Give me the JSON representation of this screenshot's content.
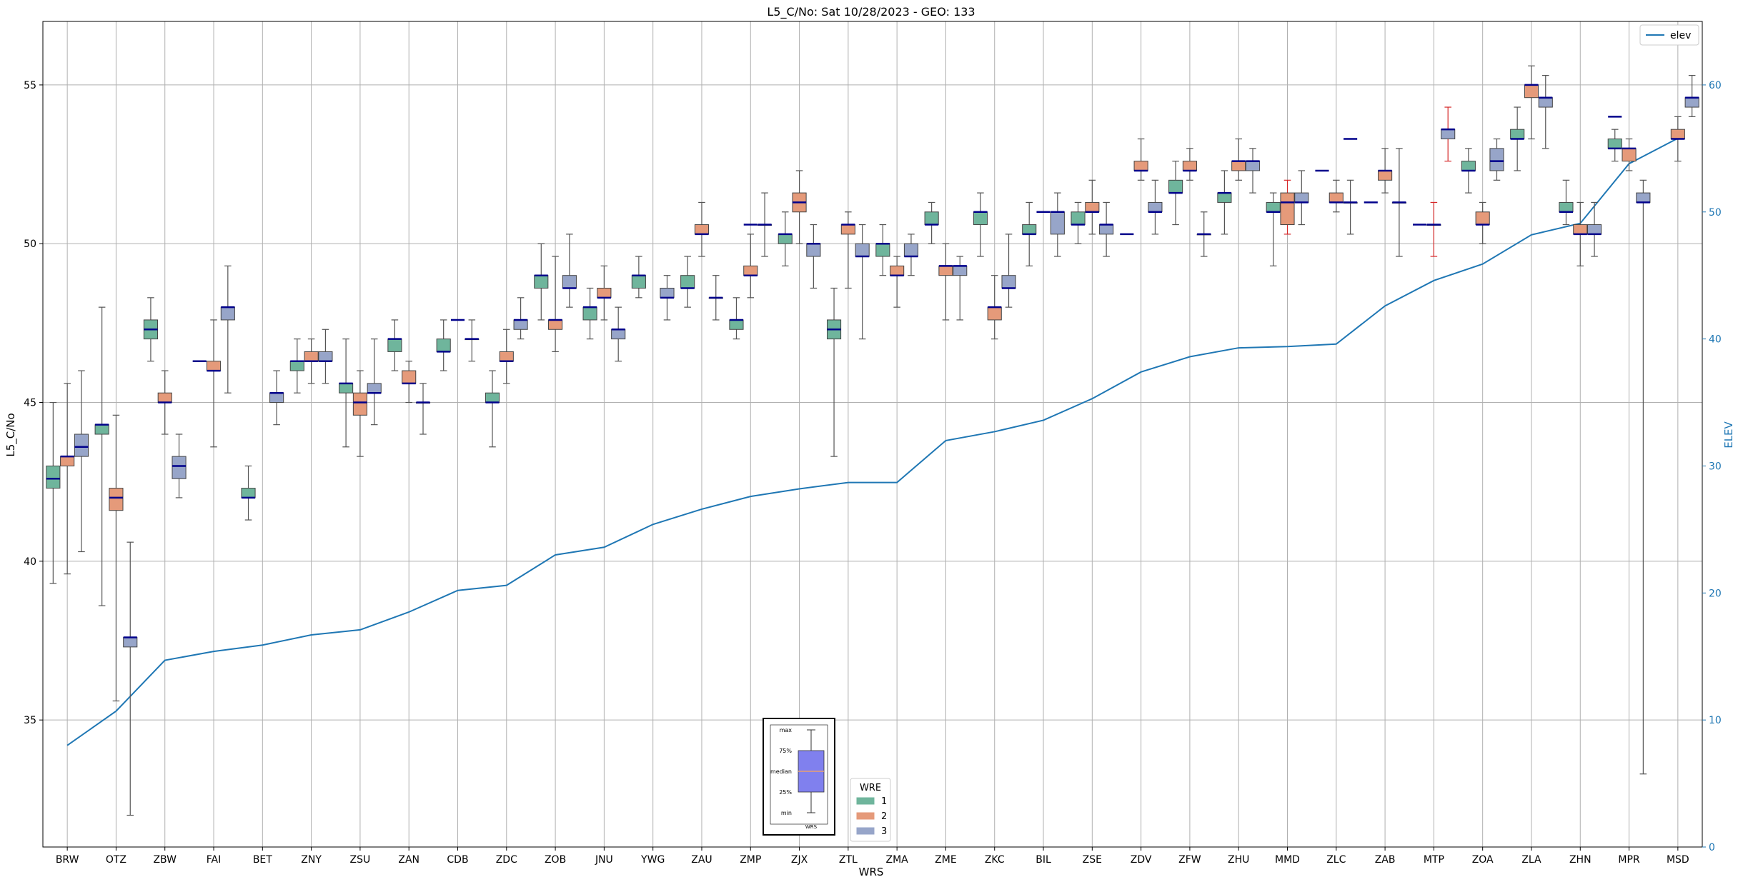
{
  "chart_data": {
    "type": "box",
    "title": "L5_C/No: Sat 10/28/2023 - GEO: 133",
    "xlabel": "WRS",
    "ylabel": "L5_C/No",
    "y2label": "ELEV",
    "ylim": [
      31,
      57
    ],
    "y2lim": [
      0,
      65
    ],
    "yticks": [
      35,
      40,
      45,
      50,
      55
    ],
    "y2ticks": [
      0,
      10,
      20,
      30,
      40,
      50,
      60
    ],
    "grid": true,
    "categories": [
      "BRW",
      "OTZ",
      "ZBW",
      "FAI",
      "BET",
      "ZNY",
      "ZSU",
      "ZAN",
      "CDB",
      "ZDC",
      "ZOB",
      "JNU",
      "YWG",
      "ZAU",
      "ZMP",
      "ZJX",
      "ZTL",
      "ZMA",
      "ZME",
      "ZKC",
      "BIL",
      "ZSE",
      "ZDV",
      "ZFW",
      "ZHU",
      "MMD",
      "ZLC",
      "ZAB",
      "MTP",
      "ZOA",
      "ZLA",
      "ZHN",
      "MPR",
      "MSD"
    ],
    "box_legend": {
      "title": "WRE",
      "entries": [
        "1",
        "2",
        "3"
      ]
    },
    "line_legend": "elev",
    "wre_colors": {
      "1": "#6fb59c",
      "2": "#e59a7a",
      "3": "#97a5c9"
    },
    "elev_color": "#1f77b4",
    "median_color": "#00008b",
    "inset_legend": {
      "labels": [
        "max",
        "75%",
        "median",
        "25%",
        "min"
      ],
      "xlabel": "WRS"
    },
    "series": [
      {
        "name": "1",
        "boxes": [
          {
            "cat": "BRW",
            "min": 39.3,
            "q1": 42.3,
            "med": 42.6,
            "q3": 43.0,
            "max": 45.0
          },
          {
            "cat": "OTZ",
            "min": 38.6,
            "q1": 44.0,
            "med": 44.3,
            "q3": 44.3,
            "max": 48.0
          },
          {
            "cat": "ZBW",
            "min": 46.3,
            "q1": 47.0,
            "med": 47.3,
            "q3": 47.6,
            "max": 48.3
          },
          {
            "cat": "BET",
            "min": 41.3,
            "q1": 42.0,
            "med": 42.0,
            "q3": 42.3,
            "max": 43.0
          },
          {
            "cat": "ZNY",
            "min": 45.3,
            "q1": 46.0,
            "med": 46.3,
            "q3": 46.3,
            "max": 47.0
          },
          {
            "cat": "ZSU",
            "min": 43.6,
            "q1": 45.3,
            "med": 45.6,
            "q3": 45.6,
            "max": 47.0
          },
          {
            "cat": "ZAN",
            "min": 46.0,
            "q1": 46.6,
            "med": 47.0,
            "q3": 47.0,
            "max": 47.6
          },
          {
            "cat": "CDB",
            "min": 46.0,
            "q1": 46.6,
            "med": 46.6,
            "q3": 47.0,
            "max": 47.6
          },
          {
            "cat": "ZDC",
            "min": 43.6,
            "q1": 45.0,
            "med": 45.0,
            "q3": 45.3,
            "max": 46.0
          },
          {
            "cat": "ZOB",
            "min": 47.6,
            "q1": 48.6,
            "med": 49.0,
            "q3": 49.0,
            "max": 50.0
          },
          {
            "cat": "JNU",
            "min": 47.0,
            "q1": 47.6,
            "med": 48.0,
            "q3": 48.0,
            "max": 48.6
          },
          {
            "cat": "YWG",
            "min": 48.3,
            "q1": 48.6,
            "med": 49.0,
            "q3": 49.0,
            "max": 49.6
          },
          {
            "cat": "ZAU",
            "min": 48.0,
            "q1": 48.6,
            "med": 48.6,
            "q3": 49.0,
            "max": 49.6
          },
          {
            "cat": "ZMP",
            "min": 47.0,
            "q1": 47.3,
            "med": 47.6,
            "q3": 47.6,
            "max": 48.3
          },
          {
            "cat": "ZJX",
            "min": 49.3,
            "q1": 50.0,
            "med": 50.3,
            "q3": 50.3,
            "max": 51.0
          },
          {
            "cat": "ZTL",
            "min": 43.3,
            "q1": 47.0,
            "med": 47.3,
            "q3": 47.6,
            "max": 48.6
          },
          {
            "cat": "ZMA",
            "min": 49.0,
            "q1": 49.6,
            "med": 50.0,
            "q3": 50.0,
            "max": 50.6
          },
          {
            "cat": "ZME",
            "min": 50.0,
            "q1": 50.6,
            "med": 50.6,
            "q3": 51.0,
            "max": 51.3
          },
          {
            "cat": "ZKC",
            "min": 49.6,
            "q1": 50.6,
            "med": 51.0,
            "q3": 51.0,
            "max": 51.6
          },
          {
            "cat": "BIL",
            "min": 49.3,
            "q1": 50.3,
            "med": 50.3,
            "q3": 50.6,
            "max": 51.3
          },
          {
            "cat": "ZSE",
            "min": 50.0,
            "q1": 50.6,
            "med": 50.6,
            "q3": 51.0,
            "max": 51.3
          },
          {
            "cat": "ZFW",
            "min": 50.6,
            "q1": 51.6,
            "med": 51.6,
            "q3": 52.0,
            "max": 52.6
          },
          {
            "cat": "ZHU",
            "min": 50.3,
            "q1": 51.3,
            "med": 51.6,
            "q3": 51.6,
            "max": 52.3
          },
          {
            "cat": "MMD",
            "min": 49.3,
            "q1": 51.0,
            "med": 51.0,
            "q3": 51.3,
            "max": 51.6
          },
          {
            "cat": "ZOA",
            "min": 51.6,
            "q1": 52.3,
            "med": 52.3,
            "q3": 52.6,
            "max": 53.0
          },
          {
            "cat": "ZLA",
            "min": 52.3,
            "q1": 53.3,
            "med": 53.3,
            "q3": 53.6,
            "max": 54.3
          },
          {
            "cat": "ZHN",
            "min": 50.6,
            "q1": 51.0,
            "med": 51.0,
            "q3": 51.3,
            "max": 52.0
          },
          {
            "cat": "MPR",
            "min": 52.6,
            "q1": 53.0,
            "med": 53.0,
            "q3": 53.3,
            "max": 53.6
          }
        ]
      },
      {
        "name": "2",
        "boxes": [
          {
            "cat": "BRW",
            "min": 39.6,
            "q1": 43.0,
            "med": 43.3,
            "q3": 43.3,
            "max": 45.6
          },
          {
            "cat": "OTZ",
            "min": 35.6,
            "q1": 41.6,
            "med": 42.0,
            "q3": 42.3,
            "max": 44.6
          },
          {
            "cat": "ZBW",
            "min": 44.0,
            "q1": 45.0,
            "med": 45.0,
            "q3": 45.3,
            "max": 46.0
          },
          {
            "cat": "FAI",
            "min": 43.6,
            "q1": 46.0,
            "med": 46.0,
            "q3": 46.3,
            "max": 47.6
          },
          {
            "cat": "ZNY",
            "min": 45.6,
            "q1": 46.3,
            "med": 46.3,
            "q3": 46.6,
            "max": 47.0
          },
          {
            "cat": "ZSU",
            "min": 43.3,
            "q1": 44.6,
            "med": 45.0,
            "q3": 45.3,
            "max": 46.0
          },
          {
            "cat": "ZAN",
            "min": 45.0,
            "q1": 45.6,
            "med": 45.6,
            "q3": 46.0,
            "max": 46.3
          },
          {
            "cat": "ZDC",
            "min": 45.6,
            "q1": 46.3,
            "med": 46.3,
            "q3": 46.6,
            "max": 47.3
          },
          {
            "cat": "ZOB",
            "min": 46.6,
            "q1": 47.3,
            "med": 47.6,
            "q3": 47.6,
            "max": 49.6
          },
          {
            "cat": "JNU",
            "min": 47.6,
            "q1": 48.3,
            "med": 48.3,
            "q3": 48.6,
            "max": 49.3
          },
          {
            "cat": "ZAU",
            "min": 49.6,
            "q1": 50.3,
            "med": 50.3,
            "q3": 50.6,
            "max": 51.3
          },
          {
            "cat": "ZMP",
            "min": 48.3,
            "q1": 49.0,
            "med": 49.0,
            "q3": 49.3,
            "max": 50.3
          },
          {
            "cat": "ZJX",
            "min": 50.0,
            "q1": 51.0,
            "med": 51.3,
            "q3": 51.6,
            "max": 52.3
          },
          {
            "cat": "ZTL",
            "min": 48.6,
            "q1": 50.3,
            "med": 50.6,
            "q3": 50.6,
            "max": 51.0
          },
          {
            "cat": "ZMA",
            "min": 48.0,
            "q1": 49.0,
            "med": 49.0,
            "q3": 49.3,
            "max": 49.6
          },
          {
            "cat": "ZME",
            "min": 47.6,
            "q1": 49.0,
            "med": 49.3,
            "q3": 49.3,
            "max": 50.0
          },
          {
            "cat": "ZKC",
            "min": 47.0,
            "q1": 47.6,
            "med": 48.0,
            "q3": 48.0,
            "max": 49.0
          },
          {
            "cat": "ZSE",
            "min": 50.3,
            "q1": 51.0,
            "med": 51.0,
            "q3": 51.3,
            "max": 52.0
          },
          {
            "cat": "ZDV",
            "min": 52.0,
            "q1": 52.3,
            "med": 52.3,
            "q3": 52.6,
            "max": 53.3
          },
          {
            "cat": "ZFW",
            "min": 52.0,
            "q1": 52.3,
            "med": 52.3,
            "q3": 52.6,
            "max": 53.0
          },
          {
            "cat": "ZHU",
            "min": 52.0,
            "q1": 52.3,
            "med": 52.6,
            "q3": 52.6,
            "max": 53.3
          },
          {
            "cat": "MMD",
            "min": 50.3,
            "q1": 50.6,
            "med": 51.3,
            "q3": 51.6,
            "max": 52.0,
            "whisker_color": "#d62728"
          },
          {
            "cat": "ZLC",
            "min": 51.0,
            "q1": 51.3,
            "med": 51.3,
            "q3": 51.6,
            "max": 52.0
          },
          {
            "cat": "ZAB",
            "min": 51.6,
            "q1": 52.0,
            "med": 52.3,
            "q3": 52.3,
            "max": 53.0
          },
          {
            "cat": "MTP",
            "min": 49.6,
            "q1": 50.6,
            "med": 50.6,
            "q3": 50.6,
            "max": 51.3,
            "whisker_color": "#d62728"
          },
          {
            "cat": "ZOA",
            "min": 50.0,
            "q1": 50.6,
            "med": 50.6,
            "q3": 51.0,
            "max": 51.3
          },
          {
            "cat": "ZLA",
            "min": 53.3,
            "q1": 54.6,
            "med": 55.0,
            "q3": 55.0,
            "max": 55.6
          },
          {
            "cat": "ZHN",
            "min": 49.3,
            "q1": 50.3,
            "med": 50.3,
            "q3": 50.6,
            "max": 51.3
          },
          {
            "cat": "MPR",
            "min": 52.3,
            "q1": 52.6,
            "med": 53.0,
            "q3": 53.0,
            "max": 53.3
          },
          {
            "cat": "MSD",
            "min": 52.6,
            "q1": 53.3,
            "med": 53.3,
            "q3": 53.6,
            "max": 54.0
          }
        ]
      },
      {
        "name": "3",
        "boxes": [
          {
            "cat": "BRW",
            "min": 40.3,
            "q1": 43.3,
            "med": 43.6,
            "q3": 44.0,
            "max": 46.0
          },
          {
            "cat": "OTZ",
            "min": 32.0,
            "q1": 37.3,
            "med": 37.6,
            "q3": 37.6,
            "max": 40.6
          },
          {
            "cat": "ZBW",
            "min": 42.0,
            "q1": 42.6,
            "med": 43.0,
            "q3": 43.3,
            "max": 44.0
          },
          {
            "cat": "FAI",
            "min": 45.3,
            "q1": 47.6,
            "med": 48.0,
            "q3": 48.0,
            "max": 49.3
          },
          {
            "cat": "BET",
            "min": 44.3,
            "q1": 45.0,
            "med": 45.3,
            "q3": 45.3,
            "max": 46.0
          },
          {
            "cat": "ZNY",
            "min": 45.6,
            "q1": 46.3,
            "med": 46.3,
            "q3": 46.6,
            "max": 47.3
          },
          {
            "cat": "ZSU",
            "min": 44.3,
            "q1": 45.3,
            "med": 45.3,
            "q3": 45.6,
            "max": 47.0
          },
          {
            "cat": "ZAN",
            "min": 44.0,
            "q1": 45.0,
            "med": 45.0,
            "q3": 45.0,
            "max": 45.6
          },
          {
            "cat": "CDB",
            "min": 46.3,
            "q1": 47.0,
            "med": 47.0,
            "q3": 47.0,
            "max": 47.6
          },
          {
            "cat": "ZDC",
            "min": 47.0,
            "q1": 47.3,
            "med": 47.6,
            "q3": 47.6,
            "max": 48.3
          },
          {
            "cat": "ZOB",
            "min": 48.0,
            "q1": 48.6,
            "med": 48.6,
            "q3": 49.0,
            "max": 50.3
          },
          {
            "cat": "JNU",
            "min": 46.3,
            "q1": 47.0,
            "med": 47.3,
            "q3": 47.3,
            "max": 48.0
          },
          {
            "cat": "YWG",
            "min": 47.6,
            "q1": 48.3,
            "med": 48.3,
            "q3": 48.6,
            "max": 49.0
          },
          {
            "cat": "ZAU",
            "min": 47.6,
            "q1": 48.3,
            "med": 48.3,
            "q3": 48.3,
            "max": 49.0
          },
          {
            "cat": "ZMP",
            "min": 49.6,
            "q1": 50.6,
            "med": 50.6,
            "q3": 50.6,
            "max": 51.6
          },
          {
            "cat": "ZJX",
            "min": 48.6,
            "q1": 49.6,
            "med": 50.0,
            "q3": 50.0,
            "max": 50.6
          },
          {
            "cat": "ZTL",
            "min": 47.0,
            "q1": 49.6,
            "med": 49.6,
            "q3": 50.0,
            "max": 50.6
          },
          {
            "cat": "ZMA",
            "min": 49.0,
            "q1": 49.6,
            "med": 49.6,
            "q3": 50.0,
            "max": 50.3
          },
          {
            "cat": "ZME",
            "min": 47.6,
            "q1": 49.0,
            "med": 49.3,
            "q3": 49.3,
            "max": 49.6
          },
          {
            "cat": "ZKC",
            "min": 48.0,
            "q1": 48.6,
            "med": 48.6,
            "q3": 49.0,
            "max": 50.3
          },
          {
            "cat": "BIL",
            "min": 49.6,
            "q1": 50.3,
            "med": 51.0,
            "q3": 51.0,
            "max": 51.6
          },
          {
            "cat": "ZSE",
            "min": 49.6,
            "q1": 50.3,
            "med": 50.6,
            "q3": 50.6,
            "max": 51.3
          },
          {
            "cat": "ZDV",
            "min": 50.3,
            "q1": 51.0,
            "med": 51.0,
            "q3": 51.3,
            "max": 52.0
          },
          {
            "cat": "ZFW",
            "min": 49.6,
            "q1": 50.3,
            "med": 50.3,
            "q3": 50.3,
            "max": 51.0
          },
          {
            "cat": "ZHU",
            "min": 51.6,
            "q1": 52.3,
            "med": 52.6,
            "q3": 52.6,
            "max": 53.0
          },
          {
            "cat": "MMD",
            "min": 50.6,
            "q1": 51.3,
            "med": 51.3,
            "q3": 51.6,
            "max": 52.3
          },
          {
            "cat": "ZLC",
            "min": 50.3,
            "q1": 51.3,
            "med": 51.3,
            "q3": 51.3,
            "max": 52.0
          },
          {
            "cat": "ZAB",
            "min": 49.6,
            "q1": 51.3,
            "med": 51.3,
            "q3": 51.3,
            "max": 53.0
          },
          {
            "cat": "MTP",
            "min": 52.6,
            "q1": 53.3,
            "med": 53.6,
            "q3": 53.6,
            "max": 54.3,
            "whisker_color": "#d62728"
          },
          {
            "cat": "ZOA",
            "min": 52.0,
            "q1": 52.3,
            "med": 52.6,
            "q3": 53.0,
            "max": 53.3
          },
          {
            "cat": "ZLA",
            "min": 53.0,
            "q1": 54.3,
            "med": 54.6,
            "q3": 54.6,
            "max": 55.3
          },
          {
            "cat": "ZHN",
            "min": 49.6,
            "q1": 50.3,
            "med": 50.3,
            "q3": 50.6,
            "max": 51.3
          },
          {
            "cat": "MPR",
            "min": 33.3,
            "q1": 51.3,
            "med": 51.3,
            "q3": 51.6,
            "max": 52.0
          },
          {
            "cat": "MSD",
            "min": 54.0,
            "q1": 54.3,
            "med": 54.6,
            "q3": 54.6,
            "max": 55.3
          }
        ]
      }
    ],
    "single_markers": [
      {
        "cat": "FAI",
        "wre": "1",
        "value": 46.3
      },
      {
        "cat": "CDB",
        "wre": "2",
        "value": 47.6
      },
      {
        "cat": "ZMP",
        "wre": "2",
        "value": 50.6
      },
      {
        "cat": "BIL",
        "wre": "2",
        "value": 51.0
      },
      {
        "cat": "ZDV",
        "wre": "1",
        "value": 50.3
      },
      {
        "cat": "ZLC",
        "wre": "1",
        "value": 52.3
      },
      {
        "cat": "ZLC",
        "wre": "3",
        "value": 53.3
      },
      {
        "cat": "ZAB",
        "wre": "1",
        "value": 51.3
      },
      {
        "cat": "MTP",
        "wre": "1",
        "value": 50.6
      },
      {
        "cat": "MPR",
        "wre": "1",
        "value": 54.0
      }
    ],
    "elev": {
      "name": "elev",
      "values": [
        8.0,
        10.7,
        14.7,
        15.4,
        15.9,
        16.7,
        17.1,
        18.5,
        20.2,
        20.6,
        23.0,
        23.6,
        25.4,
        26.6,
        27.6,
        28.2,
        28.7,
        28.7,
        32.0,
        32.7,
        33.6,
        35.3,
        37.4,
        38.6,
        39.3,
        39.4,
        39.6,
        42.6,
        44.6,
        45.9,
        48.2,
        49.1,
        53.8,
        55.8
      ]
    }
  }
}
